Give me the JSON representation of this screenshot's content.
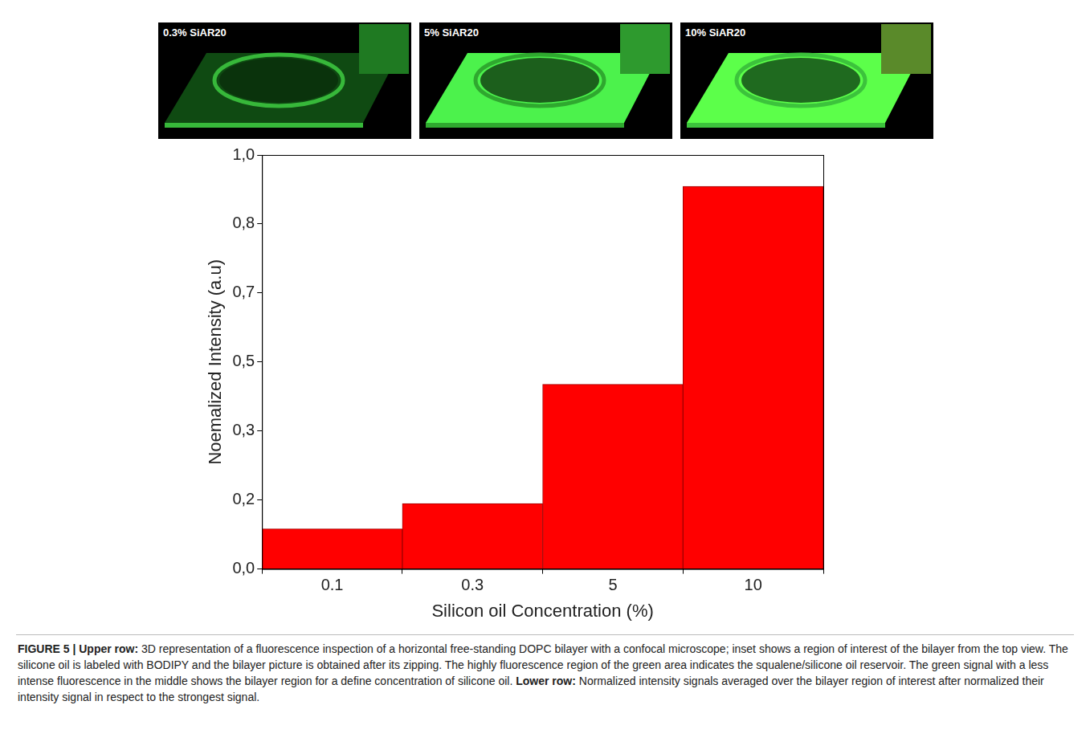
{
  "chart_data": {
    "type": "bar",
    "x_label": "Silicon oil Concentration (%)",
    "y_label": "Noemalized Intensity (a.u)",
    "categories": [
      "0.1",
      "0.3",
      "5",
      "10"
    ],
    "values": [
      0.097,
      0.158,
      0.446,
      0.924
    ],
    "color": "#ff0000",
    "ylim": [
      0,
      1
    ],
    "yticks": [
      {
        "value": 0,
        "label": "0,0"
      },
      {
        "value": 0.16667,
        "label": "0,2"
      },
      {
        "value": 0.33333,
        "label": "0,3"
      },
      {
        "value": 0.5,
        "label": "0,5"
      },
      {
        "value": 0.66667,
        "label": "0,7"
      },
      {
        "value": 0.83333,
        "label": "0,8"
      },
      {
        "value": 1,
        "label": "1,0"
      }
    ],
    "grid": false
  },
  "panels": [
    "0.3% SiAR20",
    "5% SiAR20",
    "10% SiAR20"
  ],
  "caption": {
    "heading": "FIGURE 5 | Upper row:",
    "upper_text": "3D representation of a fluorescence inspection of a horizontal free-standing DOPC bilayer with a confocal microscope; inset shows a region of interest of the bilayer from the top view. The silicone oil is labeled with BODIPY and the bilayer picture is obtained after its zipping. The highly fluorescence region of the green area indicates the squalene/silicone oil reservoir. The green signal with a less intense fluorescence in the middle shows the bilayer region for a define concentration of silicone oil.",
    "lower_heading": "Lower row:",
    "lower_text": "Normalized intensity signals averaged over the bilayer region of interest after normalized their intensity signal in respect to the strongest signal."
  }
}
